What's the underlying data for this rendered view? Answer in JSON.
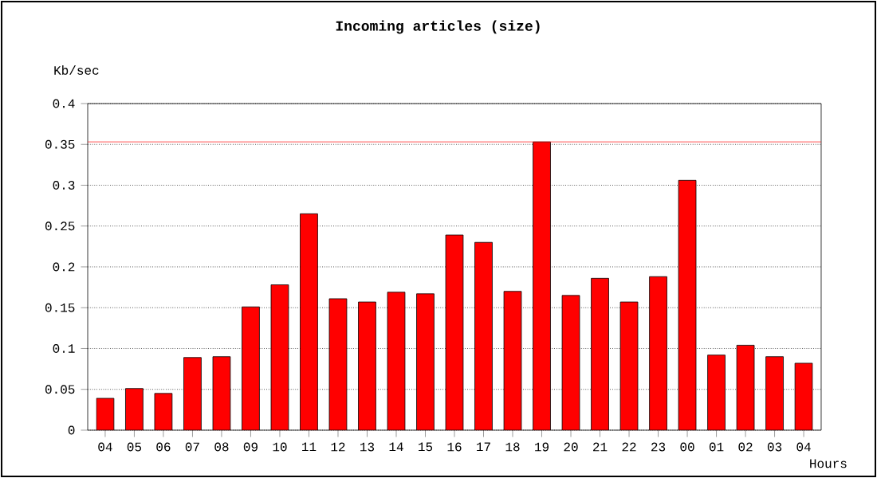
{
  "chart_data": {
    "type": "bar",
    "title": "Incoming articles (size)",
    "xlabel": "Hours",
    "ylabel": "Kb/sec",
    "categories": [
      "04",
      "05",
      "06",
      "07",
      "08",
      "09",
      "10",
      "11",
      "12",
      "13",
      "14",
      "15",
      "16",
      "17",
      "18",
      "19",
      "20",
      "21",
      "22",
      "23",
      "00",
      "01",
      "02",
      "03",
      "04"
    ],
    "values": [
      0.039,
      0.051,
      0.045,
      0.089,
      0.09,
      0.151,
      0.178,
      0.265,
      0.161,
      0.157,
      0.169,
      0.167,
      0.239,
      0.23,
      0.17,
      0.353,
      0.165,
      0.186,
      0.157,
      0.188,
      0.306,
      0.092,
      0.104,
      0.09,
      0.082
    ],
    "color": "#ff0000",
    "ylim": [
      0,
      0.4
    ],
    "yticks": [
      0,
      0.05,
      0.1,
      0.15,
      0.2,
      0.25,
      0.3,
      0.35,
      0.4
    ],
    "grid": "y",
    "ref_lines": [
      {
        "axis": "y",
        "value": 0.353,
        "color": "#ff0000"
      }
    ]
  }
}
